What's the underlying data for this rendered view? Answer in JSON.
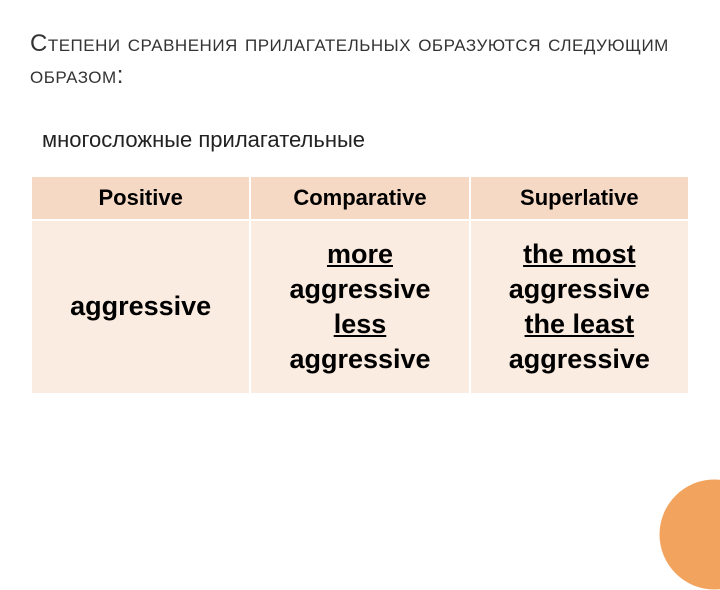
{
  "title": "Степени сравнения прилагательных образуются следующим образом:",
  "subtitle": "многосложные прилагательные",
  "table": {
    "columns": [
      "Positive",
      "Comparative",
      "Superlative"
    ],
    "row": {
      "positive": "aggressive",
      "comparative": {
        "kw1": "more",
        "w1": "aggressive",
        "kw2": "less",
        "w2": "aggressive"
      },
      "superlative": {
        "kw1": "the most",
        "w1": "aggressive",
        "kw2": "the least",
        "w2": "aggressive"
      }
    },
    "header_bg": "#f6d9c4",
    "cell_bg": "#fbece1",
    "header_fontsize": 22,
    "cell_fontsize": 27
  },
  "accent_circle_color": "#f2a35e",
  "background_color": "#ffffff"
}
